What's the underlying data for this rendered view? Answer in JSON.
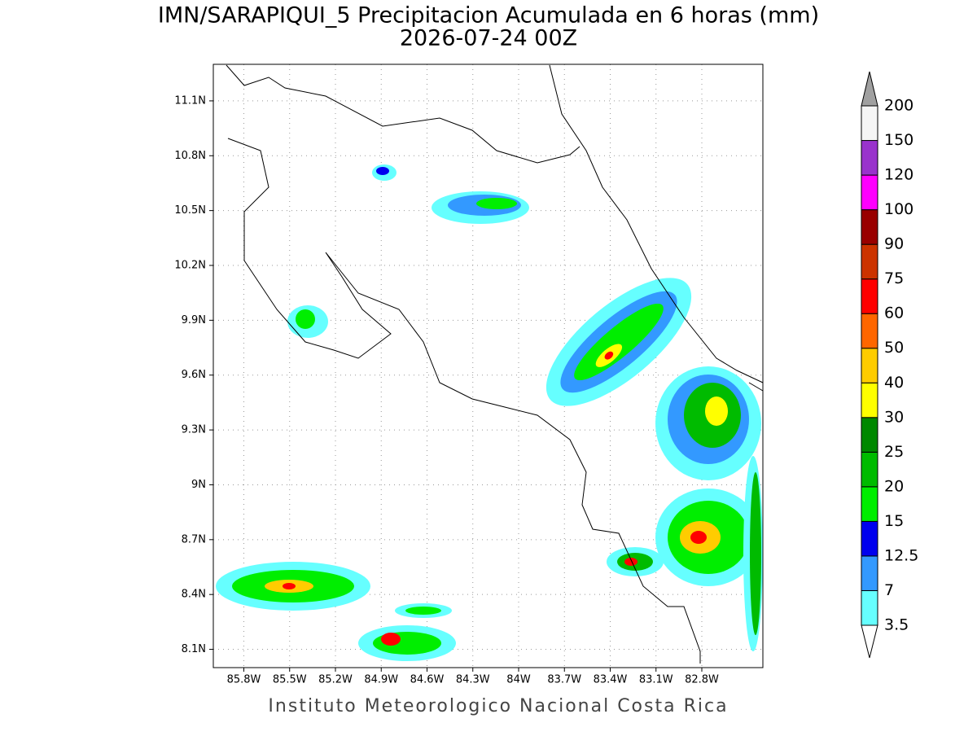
{
  "map": {
    "title": "IMN/SARAPIQUI_5 Precipitacion Acumulada en 6 horas (mm)",
    "subtitle": "2026-07-24 00Z",
    "xlim": [
      -86.0,
      -82.4
    ],
    "ylim": [
      8.0,
      11.3
    ],
    "xticks": [
      {
        "value": -85.8,
        "label": "85.8W"
      },
      {
        "value": -85.5,
        "label": "85.5W"
      },
      {
        "value": -85.2,
        "label": "85.2W"
      },
      {
        "value": -84.9,
        "label": "84.9W"
      },
      {
        "value": -84.6,
        "label": "84.6W"
      },
      {
        "value": -84.3,
        "label": "84.3W"
      },
      {
        "value": -84.0,
        "label": "84W"
      },
      {
        "value": -83.7,
        "label": "83.7W"
      },
      {
        "value": -83.4,
        "label": "83.4W"
      },
      {
        "value": -83.1,
        "label": "83.1W"
      },
      {
        "value": -82.8,
        "label": "82.8W"
      }
    ],
    "yticks": [
      {
        "value": 8.1,
        "label": "8.1N"
      },
      {
        "value": 8.4,
        "label": "8.4N"
      },
      {
        "value": 8.7,
        "label": "8.7N"
      },
      {
        "value": 9.0,
        "label": "9N"
      },
      {
        "value": 9.3,
        "label": "9.3N"
      },
      {
        "value": 9.6,
        "label": "9.6N"
      },
      {
        "value": 9.9,
        "label": "9.9N"
      },
      {
        "value": 10.2,
        "label": "10.2N"
      },
      {
        "value": 10.5,
        "label": "10.5N"
      },
      {
        "value": 10.8,
        "label": "10.8N"
      },
      {
        "value": 11.1,
        "label": "11.1N"
      }
    ],
    "grid": true
  },
  "colorbar": {
    "levels": [
      3.5,
      7,
      12.5,
      15,
      20,
      25,
      30,
      40,
      50,
      60,
      75,
      90,
      100,
      120,
      150,
      200
    ],
    "colors": [
      "#ffffff",
      "#66ffff",
      "#3399ff",
      "#0000ee",
      "#00ee00",
      "#00bb00",
      "#008800",
      "#ffff00",
      "#ffcc00",
      "#ff6600",
      "#ff0000",
      "#cc3300",
      "#990000",
      "#ff00ff",
      "#9933cc",
      "#f5f5f5",
      "#a0a0a0"
    ]
  },
  "footer": "Instituto Meteorologico Nacional Costa Rica"
}
